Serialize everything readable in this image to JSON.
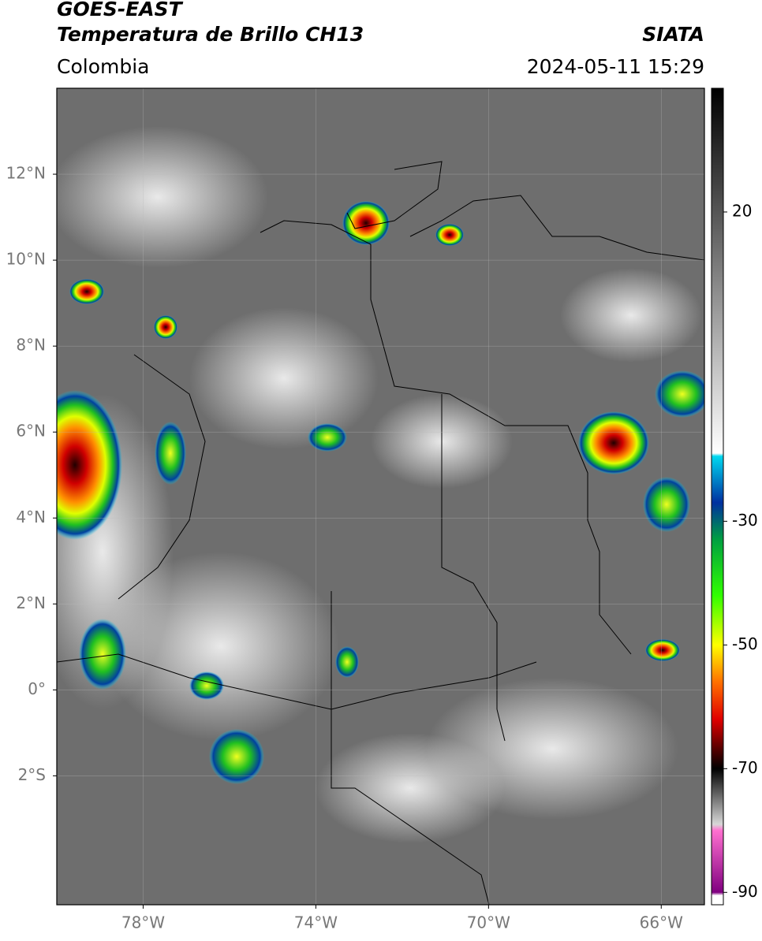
{
  "header": {
    "title": "GOES-EAST",
    "subtitle": "Temperatura de Brillo CH13",
    "source": "SIATA",
    "region": "Colombia",
    "datetime": "2024-05-11 15:29"
  },
  "map": {
    "lonlim": [
      -80,
      -65
    ],
    "latlim": [
      -5,
      14
    ],
    "lon_ticks": [
      {
        "value": -78,
        "label": "78°W"
      },
      {
        "value": -74,
        "label": "74°W"
      },
      {
        "value": -70,
        "label": "70°W"
      },
      {
        "value": -66,
        "label": "66°W"
      }
    ],
    "lat_ticks": [
      {
        "value": 12,
        "label": "12°N"
      },
      {
        "value": 10,
        "label": "10°N"
      },
      {
        "value": 8,
        "label": "8°N"
      },
      {
        "value": 6,
        "label": "6°N"
      },
      {
        "value": 4,
        "label": "4°N"
      },
      {
        "value": 2,
        "label": "2°N"
      },
      {
        "value": 0,
        "label": "0°"
      },
      {
        "value": -2,
        "label": "2°S"
      }
    ]
  },
  "colorbar": {
    "lim": [
      -92,
      40
    ],
    "ticks": [
      20,
      -30,
      -50,
      -70,
      -90
    ],
    "stops": [
      {
        "value": 40,
        "color": "#000000"
      },
      {
        "value": 20,
        "color": "#555555"
      },
      {
        "value": -19,
        "color": "#ffffff"
      },
      {
        "value": -19.5,
        "color": "#00d8f0"
      },
      {
        "value": -27,
        "color": "#0030a0"
      },
      {
        "value": -33,
        "color": "#00a040"
      },
      {
        "value": -42,
        "color": "#30ff00"
      },
      {
        "value": -50,
        "color": "#ffff00"
      },
      {
        "value": -56,
        "color": "#ff7000"
      },
      {
        "value": -62,
        "color": "#e00000"
      },
      {
        "value": -67,
        "color": "#500000"
      },
      {
        "value": -70,
        "color": "#000000"
      },
      {
        "value": -79,
        "color": "#d8d8d8"
      },
      {
        "value": -80,
        "color": "#ff70d0"
      },
      {
        "value": -90,
        "color": "#800080"
      },
      {
        "value": -90.5,
        "color": "#ffffff"
      },
      {
        "value": -92,
        "color": "#ffffff"
      }
    ]
  }
}
